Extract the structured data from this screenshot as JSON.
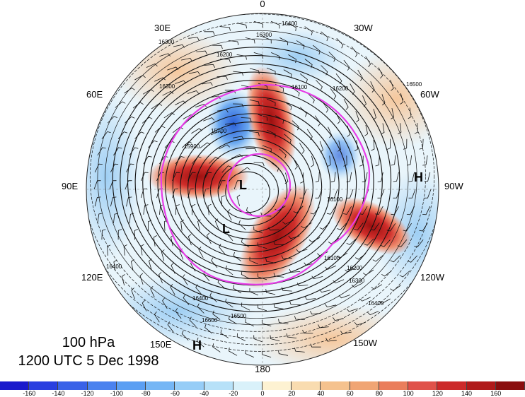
{
  "title": {
    "level": "100 hPa",
    "time": "1200 UTC 5 Dec 1998"
  },
  "longitude_labels": [
    {
      "text": "0",
      "key": "top"
    },
    {
      "text": "30W",
      "key": "top-right"
    },
    {
      "text": "60W",
      "key": "upper-right"
    },
    {
      "text": "90W",
      "key": "right"
    },
    {
      "text": "120W",
      "key": "lower-right"
    },
    {
      "text": "150W",
      "key": "bottom-right"
    },
    {
      "text": "180",
      "key": "bottom"
    },
    {
      "text": "150E",
      "key": "bottom-left"
    },
    {
      "text": "120E",
      "key": "lower-left"
    },
    {
      "text": "90E",
      "key": "left"
    },
    {
      "text": "60E",
      "key": "upper-left"
    },
    {
      "text": "30E",
      "key": "top-left"
    }
  ],
  "pressure_systems": [
    {
      "symbol": "L",
      "where": "pole"
    },
    {
      "symbol": "L",
      "where": "near-pole-lower-left"
    },
    {
      "symbol": "H",
      "where": "east-90W"
    },
    {
      "symbol": "H",
      "where": "bottom-left-150E"
    }
  ],
  "contour_labels": [
    "16400",
    "16300",
    "16200",
    "16100",
    "16000",
    "15900",
    "15800",
    "15700",
    "16500",
    "16600"
  ],
  "colorbar": {
    "ticks": [
      "-160",
      "-140",
      "-120",
      "-100",
      "-80",
      "-60",
      "-40",
      "-20",
      "0",
      "20",
      "40",
      "60",
      "80",
      "100",
      "120",
      "140",
      "160"
    ],
    "colors": [
      "#1a1acc",
      "#2a3fe0",
      "#3a62e8",
      "#4a82ef",
      "#5b9ff3",
      "#75b6f5",
      "#96cdf7",
      "#b7e1f8",
      "#d9f1fa",
      "#fdf2d2",
      "#f9dcb0",
      "#f5c28e",
      "#f0a574",
      "#ea7e5c",
      "#e0524a",
      "#cc2a2a",
      "#b01a1a",
      "#8a0e0e"
    ]
  },
  "colors": {
    "magenta_contour": "#e83ce8",
    "warm_anomaly": "#c8201e",
    "cold_anomaly": "#2f6fd8"
  }
}
